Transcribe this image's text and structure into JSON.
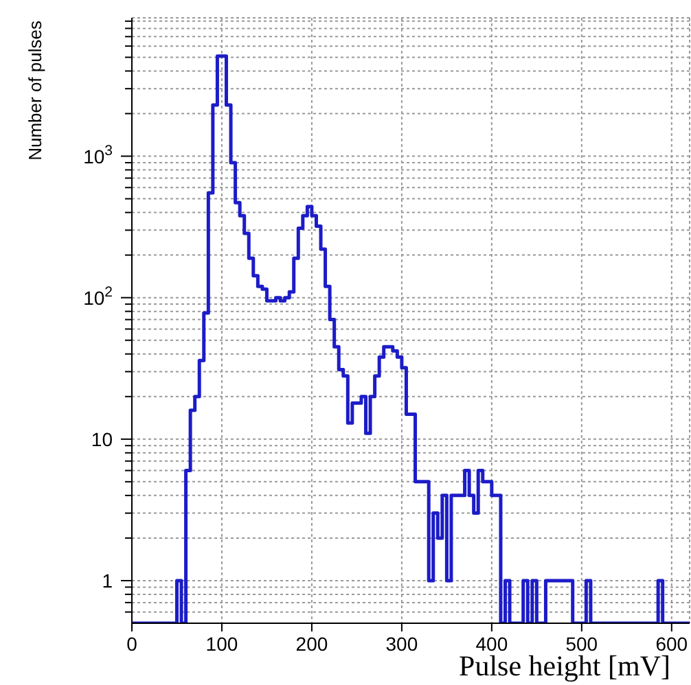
{
  "chart_data": {
    "type": "histogram",
    "xlabel": "Pulse height [mV]",
    "ylabel": "Number of pulses",
    "bins": [
      0,
      5,
      10,
      15,
      20,
      25,
      30,
      35,
      40,
      45,
      50,
      55,
      60,
      65,
      70,
      75,
      80,
      85,
      90,
      95,
      100,
      105,
      110,
      115,
      120,
      125,
      130,
      135,
      140,
      145,
      150,
      155,
      160,
      165,
      170,
      175,
      180,
      185,
      190,
      195,
      200,
      205,
      210,
      215,
      220,
      225,
      230,
      235,
      240,
      245,
      250,
      255,
      260,
      265,
      270,
      275,
      280,
      285,
      290,
      295,
      300,
      305,
      310,
      315,
      320,
      325,
      330,
      335,
      340,
      345,
      350,
      355,
      360,
      365,
      370,
      375,
      380,
      385,
      390,
      395,
      400,
      405,
      410,
      415,
      420,
      425,
      430,
      435,
      440,
      445,
      450,
      455,
      460,
      465,
      470,
      475,
      480,
      485,
      490,
      495,
      500,
      505,
      510,
      515,
      520,
      525,
      530,
      535,
      540,
      545,
      550,
      555,
      560,
      565,
      570,
      575,
      580,
      585,
      590,
      595,
      600,
      605,
      610,
      615,
      620
    ],
    "values": [
      null,
      null,
      null,
      null,
      null,
      null,
      null,
      null,
      null,
      null,
      1,
      null,
      6,
      16,
      20,
      36,
      78,
      550,
      2300,
      5100,
      5100,
      2300,
      900,
      470,
      380,
      285,
      190,
      143,
      120,
      115,
      95,
      95,
      100,
      95,
      100,
      110,
      190,
      310,
      380,
      440,
      380,
      320,
      220,
      120,
      70,
      45,
      31,
      28,
      13,
      18,
      18,
      20,
      11,
      20,
      28,
      38,
      45,
      45,
      42,
      38,
      32,
      15,
      15,
      5,
      5,
      5,
      1,
      3,
      2,
      4,
      1,
      4,
      4,
      4,
      6,
      4,
      3,
      6,
      5,
      5,
      4,
      4,
      null,
      1,
      null,
      null,
      null,
      1,
      null,
      1,
      null,
      null,
      1,
      1,
      1,
      1,
      1,
      1,
      null,
      null,
      null,
      1,
      null,
      null,
      null,
      null,
      null,
      null,
      null,
      null,
      null,
      null,
      null,
      null,
      null,
      null,
      null,
      1,
      null,
      null,
      null,
      null,
      null,
      null
    ],
    "color": "#1c1cc8",
    "log": "y",
    "xlim": [
      0,
      620
    ],
    "xticks": [
      0,
      100,
      200,
      300,
      400,
      500,
      600
    ],
    "ylim": [
      0.5,
      9500
    ],
    "yticks": [
      {
        "value": 0.6,
        "label": null
      },
      {
        "value": 0.7,
        "label": null
      },
      {
        "value": 0.8,
        "label": null
      },
      {
        "value": 0.9,
        "label": null
      },
      1,
      {
        "value": 2,
        "label": null
      },
      {
        "value": 3,
        "label": null
      },
      {
        "value": 4,
        "label": null
      },
      {
        "value": 5,
        "label": null
      },
      {
        "value": 6,
        "label": null
      },
      {
        "value": 7,
        "label": null
      },
      {
        "value": 8,
        "label": null
      },
      {
        "value": 9,
        "label": null
      },
      10,
      {
        "value": 20,
        "label": null
      },
      {
        "value": 30,
        "label": null
      },
      {
        "value": 40,
        "label": null
      },
      {
        "value": 50,
        "label": null
      },
      {
        "value": 60,
        "label": null
      },
      {
        "value": 70,
        "label": null
      },
      {
        "value": 80,
        "label": null
      },
      {
        "value": 90,
        "label": null
      },
      {
        "value": 100,
        "label": "10$^{2}$"
      },
      {
        "value": 200,
        "label": null
      },
      {
        "value": 300,
        "label": null
      },
      {
        "value": 400,
        "label": null
      },
      {
        "value": 500,
        "label": null
      },
      {
        "value": 600,
        "label": null
      },
      {
        "value": 700,
        "label": null
      },
      {
        "value": 800,
        "label": null
      },
      {
        "value": 900,
        "label": null
      },
      {
        "value": 1000,
        "label": "10$^{3}$"
      },
      {
        "value": 2000,
        "label": null
      },
      {
        "value": 3000,
        "label": null
      },
      {
        "value": 4000,
        "label": null
      },
      {
        "value": 5000,
        "label": null
      },
      {
        "value": 6000,
        "label": null
      },
      {
        "value": 7000,
        "label": null
      },
      {
        "value": 8000,
        "label": null
      },
      {
        "value": 9000,
        "label": null
      }
    ],
    "grid": true
  }
}
